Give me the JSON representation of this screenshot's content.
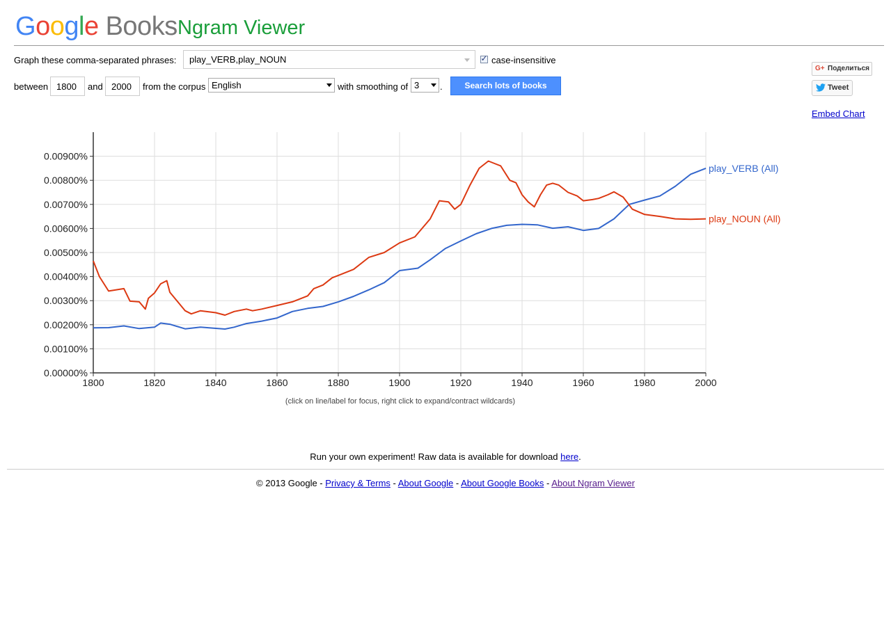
{
  "header": {
    "logo_google": "Google",
    "logo_books": "Books",
    "title": "Ngram Viewer"
  },
  "form": {
    "phrases_label": "Graph these comma-separated phrases:",
    "phrases_value": "play_VERB,play_NOUN",
    "case_insensitive_label": "case-insensitive",
    "case_insensitive_checked": true,
    "between_label": "between",
    "year_start": "1800",
    "and_label": "and",
    "year_end": "2000",
    "corpus_label": "from the corpus",
    "corpus_value": "English",
    "smoothing_label": "with smoothing of",
    "smoothing_value": "3",
    "period": ".",
    "search_button": "Search lots of books"
  },
  "share": {
    "share_label": "Поделиться",
    "gplus_icon": "G+",
    "tweet_label": "Tweet",
    "embed_label": "Embed Chart"
  },
  "chart_data": {
    "type": "line",
    "xlim": [
      1800,
      2000
    ],
    "ylim": [
      0,
      0.0001
    ],
    "grid": true,
    "legend": "right-end labels",
    "x_ticks": [
      "1800",
      "1820",
      "1840",
      "1860",
      "1880",
      "1900",
      "1920",
      "1940",
      "1960",
      "1980",
      "2000"
    ],
    "y_ticks": [
      "0.00000%",
      "0.00100%",
      "0.00200%",
      "0.00300%",
      "0.00400%",
      "0.00500%",
      "0.00600%",
      "0.00700%",
      "0.00800%",
      "0.00900%"
    ],
    "series": [
      {
        "name": "play_VERB (All)",
        "color": "#3366cc",
        "points": [
          [
            1800,
            1.87e-05
          ],
          [
            1805,
            1.88e-05
          ],
          [
            1810,
            1.95e-05
          ],
          [
            1815,
            1.84e-05
          ],
          [
            1820,
            1.9e-05
          ],
          [
            1822,
            2.07e-05
          ],
          [
            1825,
            2.02e-05
          ],
          [
            1830,
            1.83e-05
          ],
          [
            1835,
            1.9e-05
          ],
          [
            1840,
            1.85e-05
          ],
          [
            1843,
            1.82e-05
          ],
          [
            1846,
            1.9e-05
          ],
          [
            1850,
            2.05e-05
          ],
          [
            1855,
            2.15e-05
          ],
          [
            1860,
            2.28e-05
          ],
          [
            1865,
            2.55e-05
          ],
          [
            1870,
            2.68e-05
          ],
          [
            1875,
            2.76e-05
          ],
          [
            1880,
            2.95e-05
          ],
          [
            1885,
            3.18e-05
          ],
          [
            1890,
            3.45e-05
          ],
          [
            1895,
            3.75e-05
          ],
          [
            1900,
            4.25e-05
          ],
          [
            1903,
            4.3e-05
          ],
          [
            1906,
            4.35e-05
          ],
          [
            1910,
            4.7e-05
          ],
          [
            1915,
            5.17e-05
          ],
          [
            1920,
            5.48e-05
          ],
          [
            1925,
            5.78e-05
          ],
          [
            1930,
            6e-05
          ],
          [
            1935,
            6.13e-05
          ],
          [
            1940,
            6.17e-05
          ],
          [
            1945,
            6.15e-05
          ],
          [
            1950,
            6.01e-05
          ],
          [
            1955,
            6.07e-05
          ],
          [
            1960,
            5.92e-05
          ],
          [
            1965,
            6e-05
          ],
          [
            1970,
            6.4e-05
          ],
          [
            1975,
            7e-05
          ],
          [
            1980,
            7.18e-05
          ],
          [
            1985,
            7.35e-05
          ],
          [
            1990,
            7.75e-05
          ],
          [
            1995,
            8.25e-05
          ],
          [
            2000,
            8.5e-05
          ]
        ]
      },
      {
        "name": "play_NOUN (All)",
        "color": "#dc3912",
        "points": [
          [
            1800,
            4.65e-05
          ],
          [
            1802,
            4e-05
          ],
          [
            1805,
            3.4e-05
          ],
          [
            1810,
            3.5e-05
          ],
          [
            1812,
            2.98e-05
          ],
          [
            1815,
            2.95e-05
          ],
          [
            1817,
            2.65e-05
          ],
          [
            1818,
            3.1e-05
          ],
          [
            1820,
            3.32e-05
          ],
          [
            1822,
            3.7e-05
          ],
          [
            1824,
            3.83e-05
          ],
          [
            1825,
            3.35e-05
          ],
          [
            1830,
            2.58e-05
          ],
          [
            1832,
            2.45e-05
          ],
          [
            1835,
            2.58e-05
          ],
          [
            1840,
            2.5e-05
          ],
          [
            1843,
            2.4e-05
          ],
          [
            1846,
            2.55e-05
          ],
          [
            1850,
            2.65e-05
          ],
          [
            1852,
            2.58e-05
          ],
          [
            1855,
            2.65e-05
          ],
          [
            1860,
            2.8e-05
          ],
          [
            1865,
            2.95e-05
          ],
          [
            1870,
            3.2e-05
          ],
          [
            1872,
            3.5e-05
          ],
          [
            1875,
            3.65e-05
          ],
          [
            1878,
            3.95e-05
          ],
          [
            1880,
            4.05e-05
          ],
          [
            1885,
            4.3e-05
          ],
          [
            1890,
            4.8e-05
          ],
          [
            1895,
            5e-05
          ],
          [
            1900,
            5.4e-05
          ],
          [
            1905,
            5.65e-05
          ],
          [
            1910,
            6.4e-05
          ],
          [
            1913,
            7.15e-05
          ],
          [
            1916,
            7.1e-05
          ],
          [
            1918,
            6.8e-05
          ],
          [
            1920,
            7e-05
          ],
          [
            1923,
            7.8e-05
          ],
          [
            1926,
            8.5e-05
          ],
          [
            1929,
            8.8e-05
          ],
          [
            1931,
            8.7e-05
          ],
          [
            1933,
            8.6e-05
          ],
          [
            1936,
            8e-05
          ],
          [
            1938,
            7.9e-05
          ],
          [
            1940,
            7.4e-05
          ],
          [
            1942,
            7.1e-05
          ],
          [
            1944,
            6.9e-05
          ],
          [
            1946,
            7.4e-05
          ],
          [
            1948,
            7.8e-05
          ],
          [
            1950,
            7.88e-05
          ],
          [
            1952,
            7.8e-05
          ],
          [
            1955,
            7.5e-05
          ],
          [
            1958,
            7.35e-05
          ],
          [
            1960,
            7.15e-05
          ],
          [
            1963,
            7.2e-05
          ],
          [
            1965,
            7.25e-05
          ],
          [
            1968,
            7.4e-05
          ],
          [
            1970,
            7.52e-05
          ],
          [
            1973,
            7.3e-05
          ],
          [
            1976,
            6.8e-05
          ],
          [
            1980,
            6.58e-05
          ],
          [
            1985,
            6.5e-05
          ],
          [
            1990,
            6.4e-05
          ],
          [
            1995,
            6.38e-05
          ],
          [
            2000,
            6.4e-05
          ]
        ]
      }
    ]
  },
  "chart_hint": "(click on line/label for focus, right click to expand/contract wildcards)",
  "raw_data": {
    "text": "Run your own experiment! Raw data is available for download ",
    "link": "here",
    "after": "."
  },
  "footer": {
    "copyright": "© 2013 Google - ",
    "links": [
      "Privacy & Terms",
      "About Google",
      "About Google Books",
      "About Ngram Viewer"
    ],
    "sep": " - "
  }
}
